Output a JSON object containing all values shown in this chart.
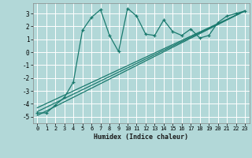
{
  "xlabel": "Humidex (Indice chaleur)",
  "bg_color": "#b2d8d8",
  "grid_color": "#ffffff",
  "line_color": "#1a7a6e",
  "xlim": [
    -0.5,
    23.5
  ],
  "ylim": [
    -5.5,
    3.8
  ],
  "yticks": [
    -5,
    -4,
    -3,
    -2,
    -1,
    0,
    1,
    2,
    3
  ],
  "xticks": [
    0,
    1,
    2,
    3,
    4,
    5,
    6,
    7,
    8,
    9,
    10,
    11,
    12,
    13,
    14,
    15,
    16,
    17,
    18,
    19,
    20,
    21,
    22,
    23
  ],
  "main_x": [
    0,
    1,
    2,
    3,
    4,
    5,
    6,
    7,
    8,
    9,
    10,
    11,
    12,
    13,
    14,
    15,
    16,
    17,
    18,
    19,
    20,
    21,
    22,
    23
  ],
  "main_y": [
    -4.7,
    -4.7,
    -4.1,
    -3.5,
    -2.3,
    1.7,
    2.7,
    3.3,
    1.3,
    0.05,
    3.4,
    2.8,
    1.4,
    1.3,
    2.5,
    1.6,
    1.3,
    1.8,
    1.1,
    1.3,
    2.3,
    2.8,
    3.0,
    3.2
  ],
  "line1_x": [
    0,
    23
  ],
  "line1_y": [
    -4.6,
    3.2
  ],
  "line2_x": [
    0,
    23
  ],
  "line2_y": [
    -4.3,
    3.2
  ],
  "line3_x": [
    0,
    23
  ],
  "line3_y": [
    -4.9,
    3.2
  ]
}
